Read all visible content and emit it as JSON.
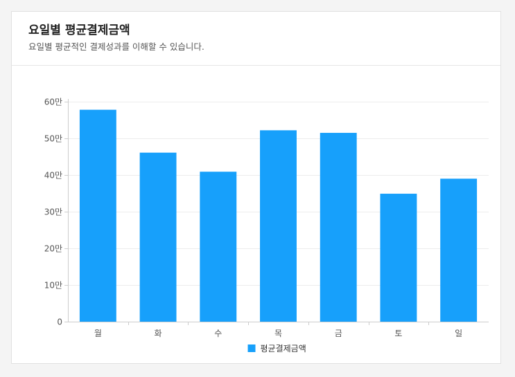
{
  "header": {
    "title": "요일별 평균결제금액",
    "subtitle": "요일별 평균적인 결제성과를 이해할 수 있습니다."
  },
  "colors": {
    "bar": "#17a0fb",
    "grid": "#ececec",
    "axis": "#cccccc"
  },
  "chart_data": {
    "type": "bar",
    "categories": [
      "월",
      "화",
      "수",
      "목",
      "금",
      "토",
      "일"
    ],
    "series": [
      {
        "name": "평균결제금액",
        "values": [
          578000,
          461000,
          409000,
          522000,
          515000,
          349000,
          390000
        ]
      }
    ],
    "ylim": [
      0,
      600000
    ],
    "yticks": [
      {
        "value": 0,
        "label": "0"
      },
      {
        "value": 100000,
        "label": "10만"
      },
      {
        "value": 200000,
        "label": "20만"
      },
      {
        "value": 300000,
        "label": "30만"
      },
      {
        "value": 400000,
        "label": "40만"
      },
      {
        "value": 500000,
        "label": "50만"
      },
      {
        "value": 600000,
        "label": "60만"
      }
    ],
    "grid": true,
    "legend_position": "bottom",
    "xlabel": "",
    "ylabel": ""
  }
}
